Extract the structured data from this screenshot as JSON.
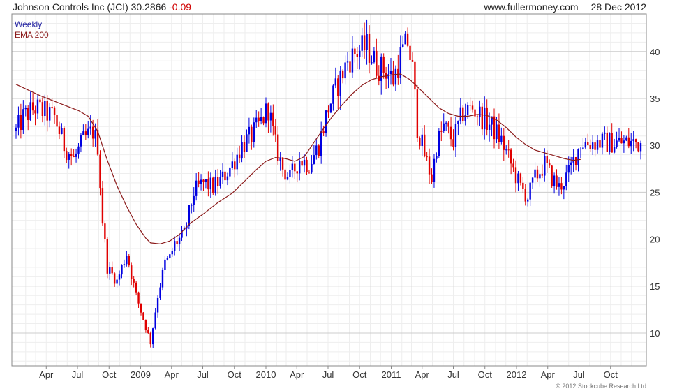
{
  "header": {
    "title": "Johnson Controls Inc (JCI) 30.2866",
    "change": "-0.09",
    "website": "www.fullermoney.com",
    "date": "28 Dec 2012"
  },
  "legend": {
    "series1": "Weekly",
    "series2": "EMA 200"
  },
  "footer": {
    "copyright": "© 2012 Stockcube Research Ltd"
  },
  "colors": {
    "up": "#0000e0",
    "down": "#e00000",
    "ema": "#8b1a1a",
    "grid": "#dddddd",
    "frame": "#888888"
  },
  "chart_data": {
    "type": "candlestick",
    "x_unit": "weeks",
    "x_range": [
      "2008-01-04",
      "2012-12-28"
    ],
    "ylim": [
      6.5,
      44
    ],
    "y_ticks": [
      10,
      15,
      20,
      25,
      30,
      35,
      40
    ],
    "x_ticks": [
      {
        "label": "Apr",
        "date": "2008-04-01"
      },
      {
        "label": "Jul",
        "date": "2008-07-01"
      },
      {
        "label": "Oct",
        "date": "2008-10-01"
      },
      {
        "label": "2009",
        "date": "2009-01-01"
      },
      {
        "label": "Apr",
        "date": "2009-04-01"
      },
      {
        "label": "Jul",
        "date": "2009-07-01"
      },
      {
        "label": "Oct",
        "date": "2009-10-01"
      },
      {
        "label": "2010",
        "date": "2010-01-01"
      },
      {
        "label": "Apr",
        "date": "2010-04-01"
      },
      {
        "label": "Jul",
        "date": "2010-07-01"
      },
      {
        "label": "Oct",
        "date": "2010-10-01"
      },
      {
        "label": "2011",
        "date": "2011-01-01"
      },
      {
        "label": "Apr",
        "date": "2011-04-01"
      },
      {
        "label": "Jul",
        "date": "2011-07-01"
      },
      {
        "label": "Oct",
        "date": "2011-10-01"
      },
      {
        "label": "2012",
        "date": "2012-01-01"
      },
      {
        "label": "Apr",
        "date": "2012-04-01"
      },
      {
        "label": "Jul",
        "date": "2012-07-01"
      },
      {
        "label": "Oct",
        "date": "2012-10-01"
      }
    ],
    "price_path": [
      [
        0,
        31.5
      ],
      [
        3,
        33
      ],
      [
        8,
        34
      ],
      [
        12,
        33.5
      ],
      [
        16,
        33
      ],
      [
        20,
        30
      ],
      [
        24,
        28.5
      ],
      [
        28,
        30.5
      ],
      [
        32,
        31.5
      ],
      [
        34,
        30
      ],
      [
        36,
        22
      ],
      [
        38,
        17
      ],
      [
        42,
        15.5
      ],
      [
        46,
        18.5
      ],
      [
        50,
        14
      ],
      [
        53,
        11.5
      ],
      [
        56,
        9
      ],
      [
        59,
        14
      ],
      [
        62,
        17.5
      ],
      [
        64,
        18
      ],
      [
        66,
        19.5
      ],
      [
        70,
        20.5
      ],
      [
        74,
        25
      ],
      [
        78,
        26
      ],
      [
        82,
        25.5
      ],
      [
        86,
        26.5
      ],
      [
        90,
        28
      ],
      [
        94,
        30
      ],
      [
        98,
        31
      ],
      [
        102,
        32.5
      ],
      [
        105,
        34
      ],
      [
        108,
        30
      ],
      [
        111,
        27.5
      ],
      [
        114,
        26.5
      ],
      [
        118,
        28.5
      ],
      [
        122,
        28
      ],
      [
        126,
        30
      ],
      [
        130,
        34
      ],
      [
        134,
        36.5
      ],
      [
        138,
        39
      ],
      [
        142,
        40
      ],
      [
        146,
        40.5
      ],
      [
        150,
        38.5
      ],
      [
        154,
        38
      ],
      [
        157,
        37
      ],
      [
        160,
        39.5
      ],
      [
        163,
        41
      ],
      [
        165,
        38
      ],
      [
        167,
        32
      ],
      [
        170,
        29
      ],
      [
        173,
        26.5
      ],
      [
        175,
        30
      ],
      [
        178,
        32
      ],
      [
        182,
        30.5
      ],
      [
        186,
        33.5
      ],
      [
        190,
        34
      ],
      [
        194,
        33
      ],
      [
        198,
        32
      ],
      [
        202,
        30.5
      ],
      [
        206,
        28
      ],
      [
        210,
        25.5
      ],
      [
        213,
        24.5
      ],
      [
        216,
        26.5
      ],
      [
        220,
        28
      ],
      [
        223,
        26.5
      ],
      [
        226,
        25.5
      ],
      [
        230,
        27
      ],
      [
        233,
        29
      ],
      [
        235,
        30.3
      ]
    ],
    "ema_path": [
      [
        0,
        36.5
      ],
      [
        10,
        35.3
      ],
      [
        20,
        34.3
      ],
      [
        26,
        33.7
      ],
      [
        30,
        33.1
      ],
      [
        34,
        31.5
      ],
      [
        38,
        28.4
      ],
      [
        42,
        25.7
      ],
      [
        46,
        23.5
      ],
      [
        50,
        21.6
      ],
      [
        54,
        20.1
      ],
      [
        56,
        19.6
      ],
      [
        60,
        19.5
      ],
      [
        64,
        19.8
      ],
      [
        68,
        20.5
      ],
      [
        72,
        21.6
      ],
      [
        78,
        22.7
      ],
      [
        84,
        23.9
      ],
      [
        90,
        24.9
      ],
      [
        96,
        26.4
      ],
      [
        100,
        27.4
      ],
      [
        104,
        28.3
      ],
      [
        108,
        28.7
      ],
      [
        112,
        28.6
      ],
      [
        116,
        28.3
      ],
      [
        120,
        28.8
      ],
      [
        124,
        30.3
      ],
      [
        128,
        31.8
      ],
      [
        132,
        33.2
      ],
      [
        136,
        34.4
      ],
      [
        140,
        35.5
      ],
      [
        144,
        36.4
      ],
      [
        148,
        37.0
      ],
      [
        152,
        37.3
      ],
      [
        156,
        37.5
      ],
      [
        160,
        37.6
      ],
      [
        164,
        37.0
      ],
      [
        168,
        36.0
      ],
      [
        172,
        35.0
      ],
      [
        176,
        34.0
      ],
      [
        180,
        33.4
      ],
      [
        184,
        33.1
      ],
      [
        188,
        33.1
      ],
      [
        192,
        33.3
      ],
      [
        196,
        33.2
      ],
      [
        200,
        32.7
      ],
      [
        204,
        31.9
      ],
      [
        208,
        30.9
      ],
      [
        212,
        30.1
      ],
      [
        216,
        29.5
      ],
      [
        220,
        29.2
      ],
      [
        224,
        28.9
      ],
      [
        228,
        28.6
      ],
      [
        232,
        28.4
      ],
      [
        235,
        28.5
      ]
    ]
  }
}
